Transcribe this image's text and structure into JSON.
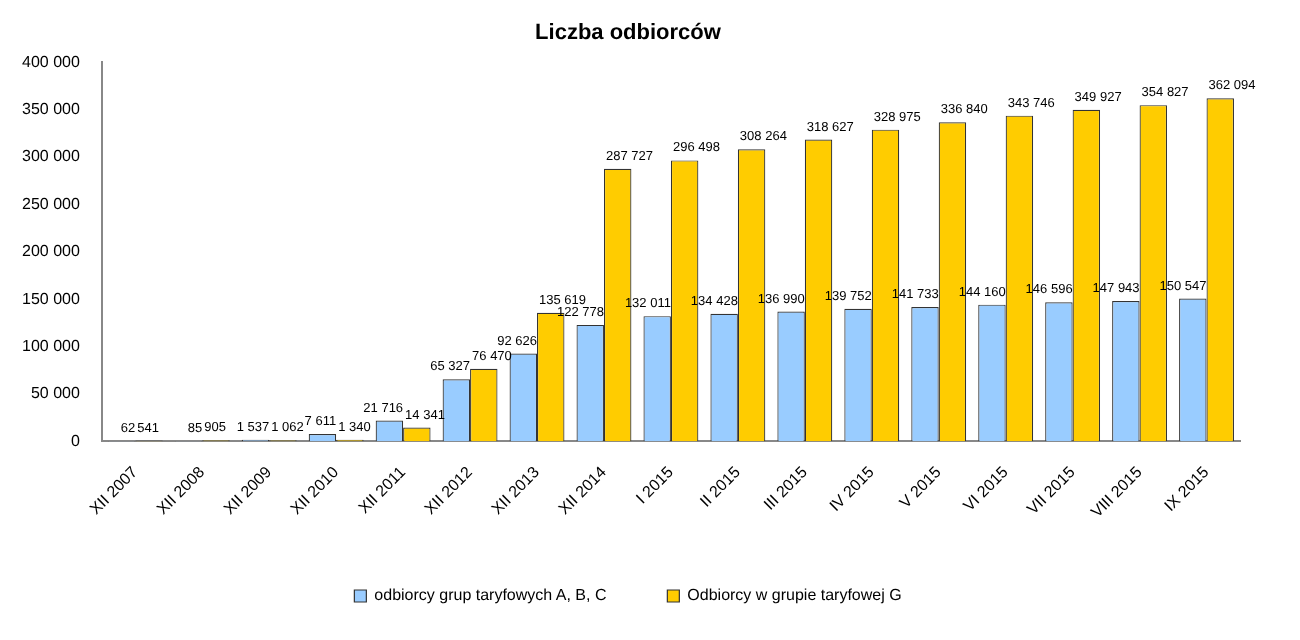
{
  "chart_data": {
    "type": "bar",
    "title": "Liczba odbiorców",
    "categories": [
      "XII 2007",
      "XII 2008",
      "XII 2009",
      "XII 2010",
      "XII 2011",
      "XII 2012",
      "XII 2013",
      "XII 2014",
      "I 2015",
      "II 2015",
      "III 2015",
      "IV 2015",
      "V 2015",
      "VI 2015",
      "VII 2015",
      "VIII 2015",
      "IX 2015"
    ],
    "series": [
      {
        "name": "odbiorcy grup taryfowych A, B, C",
        "color": "#99ccff",
        "values": [
          62,
          85,
          1537,
          7611,
          21716,
          65327,
          92626,
          122778,
          132011,
          134428,
          136990,
          139752,
          141733,
          144160,
          146596,
          147943,
          150547
        ],
        "value_labels": [
          "62",
          "85",
          "1 537",
          "7 611",
          "21 716",
          "65 327",
          "92 626",
          "122 778",
          "132 011",
          "134 428",
          "136 990",
          "139 752",
          "141 733",
          "144 160",
          "146 596",
          "147 943",
          "150 547"
        ]
      },
      {
        "name": "Odbiorcy w grupie taryfowej G",
        "color": "#ffcc00",
        "values": [
          541,
          905,
          1062,
          1340,
          14341,
          76470,
          135619,
          287727,
          296498,
          308264,
          318627,
          328975,
          336840,
          343746,
          349927,
          354827,
          362094
        ],
        "value_labels": [
          "541",
          "905",
          "1 062",
          "1 340",
          "14 341",
          "76 470",
          "135 619",
          "287 727",
          "296 498",
          "308 264",
          "318 627",
          "328 975",
          "336 840",
          "343 746",
          "349 927",
          "354 827",
          "362 094"
        ]
      }
    ],
    "ylim": [
      0,
      400000
    ],
    "yticks": [
      {
        "value": 0,
        "label": "0"
      },
      {
        "value": 50000,
        "label": "50 000"
      },
      {
        "value": 100000,
        "label": "100 000"
      },
      {
        "value": 150000,
        "label": "150 000"
      },
      {
        "value": 200000,
        "label": "200 000"
      },
      {
        "value": 250000,
        "label": "250 000"
      },
      {
        "value": 300000,
        "label": "300 000"
      },
      {
        "value": 350000,
        "label": "350 000"
      },
      {
        "value": 400000,
        "label": "400 000"
      }
    ],
    "grid": false,
    "legend": "bottom"
  }
}
